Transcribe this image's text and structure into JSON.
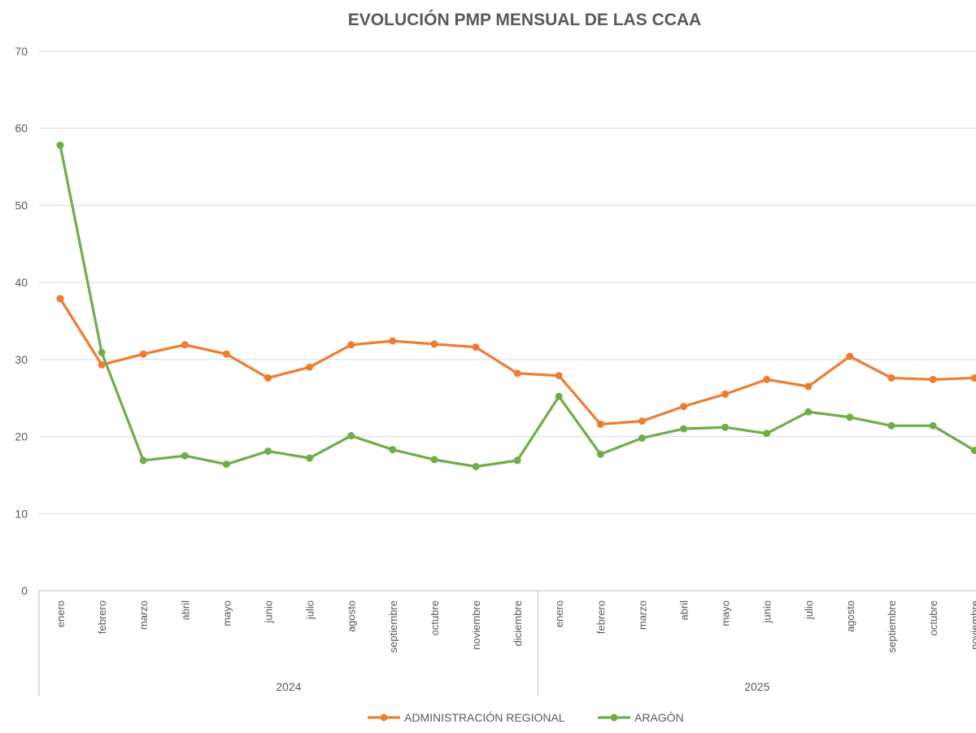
{
  "chart_data": {
    "type": "line",
    "title": "EVOLUCIÓN PMP MENSUAL DE LAS CCAA",
    "categories": [
      "enero",
      "febrero",
      "marzo",
      "abril",
      "mayo",
      "junio",
      "julio",
      "agosto",
      "septiembre",
      "octubre",
      "noviembre",
      "diciembre",
      "enero",
      "febrero",
      "marzo",
      "abril",
      "mayo",
      "junio",
      "julio",
      "agosto",
      "septiembre",
      "octubre",
      "noviembre"
    ],
    "groups": [
      {
        "label": "2024",
        "start": 0,
        "count": 12
      },
      {
        "label": "2025",
        "start": 12,
        "count": 11
      }
    ],
    "ylim": [
      0,
      70
    ],
    "yticks": [
      "0",
      "10",
      "20",
      "30",
      "40",
      "50",
      "60",
      "70"
    ],
    "grid": true,
    "legend_position": "bottom",
    "series": [
      {
        "name": "ADMINISTRACIÓN REGIONAL",
        "color": "#ed7d31",
        "values": [
          37.9,
          29.3,
          30.7,
          31.9,
          30.7,
          27.6,
          29.0,
          31.9,
          32.4,
          32.0,
          31.6,
          28.2,
          27.9,
          21.6,
          22.0,
          23.9,
          25.5,
          27.4,
          26.5,
          30.4,
          27.6,
          27.4,
          27.6
        ]
      },
      {
        "name": "ARAGÓN",
        "color": "#70ad47",
        "values": [
          57.8,
          30.9,
          16.9,
          17.5,
          16.4,
          18.1,
          17.2,
          20.1,
          18.3,
          17.0,
          16.1,
          16.9,
          25.2,
          17.7,
          19.8,
          21.0,
          21.2,
          20.4,
          23.2,
          22.5,
          21.4,
          21.4,
          18.2
        ]
      }
    ]
  }
}
